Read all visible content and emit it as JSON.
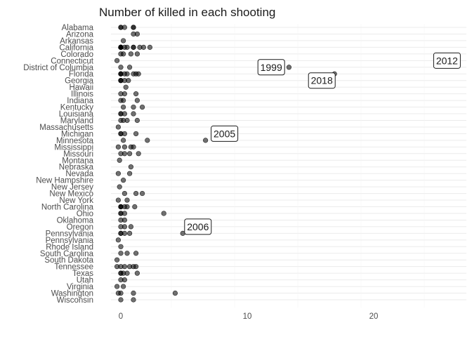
{
  "chart_data": {
    "type": "scatter",
    "title": "Number of killed in each shooting",
    "xlabel": "",
    "ylabel": "",
    "xlim": [
      -1,
      27
    ],
    "x_ticks": [
      0,
      10,
      20
    ],
    "grid": true,
    "categories": [
      "Alabama",
      "Arizona",
      "Arkansas",
      "California",
      "Colorado",
      "Connecticut",
      "District of Columbia",
      "Florida",
      "Georgia",
      "Hawaii",
      "Illinois",
      "Indiana",
      "Kentucky",
      "Louisiana",
      "Maryland",
      "Massachusetts",
      "Michigan",
      "Minnesota",
      "Mississippi",
      "Missouri",
      "Montana",
      "Nebraska",
      "Nevada",
      "New Hampshire",
      "New Jersey",
      "New Mexico",
      "New York",
      "North Carolina",
      "Ohio",
      "Oklahoma",
      "Oregon",
      "Pennsylvania",
      "Pennsylvania ",
      "Rhode Island",
      "South Carolina",
      "South Dakota",
      "Tennessee",
      "Texas",
      "Utah",
      "Virginia",
      "Washington",
      "Wisconsin"
    ],
    "points": [
      {
        "state": "Alabama",
        "x": [
          0,
          0,
          0.3,
          1,
          1
        ]
      },
      {
        "state": "Arizona",
        "x": [
          1,
          1.3
        ]
      },
      {
        "state": "Arkansas",
        "x": [
          0.2
        ]
      },
      {
        "state": "California",
        "x": [
          0,
          0,
          0,
          0,
          0,
          0,
          0,
          0,
          0.3,
          0.5,
          1,
          1,
          1.5,
          1.8,
          2.3
        ]
      },
      {
        "state": "Colorado",
        "x": [
          0,
          0.2,
          0.8,
          1.3
        ]
      },
      {
        "state": "Connecticut",
        "x": [
          -0.3
        ]
      },
      {
        "state": "District of Columbia",
        "x": [
          0,
          0.7,
          13.3
        ]
      },
      {
        "state": "Florida",
        "x": [
          0,
          0,
          0,
          0.3,
          0.5,
          1,
          1.2,
          1.4,
          16.9
        ]
      },
      {
        "state": "Georgia",
        "x": [
          0,
          0,
          0,
          0.3,
          0.6
        ]
      },
      {
        "state": "Hawaii",
        "x": [
          0.4
        ]
      },
      {
        "state": "Illinois",
        "x": [
          0,
          0.3,
          1.2
        ]
      },
      {
        "state": "Indiana",
        "x": [
          0,
          0.2,
          1.3
        ]
      },
      {
        "state": "Kentucky",
        "x": [
          0.2,
          1,
          1.7
        ]
      },
      {
        "state": "Louisiana",
        "x": [
          0,
          0,
          0.3,
          1
        ]
      },
      {
        "state": "Maryland",
        "x": [
          0,
          0.2,
          0.5,
          1.3
        ]
      },
      {
        "state": "Massachusetts",
        "x": [
          -0.2
        ]
      },
      {
        "state": "Michigan",
        "x": [
          0,
          0,
          0.3,
          1.2
        ]
      },
      {
        "state": "Minnesota",
        "x": [
          0.2,
          2.1,
          6.7
        ]
      },
      {
        "state": "Mississippi",
        "x": [
          -0.2,
          0.3,
          0.8,
          1
        ]
      },
      {
        "state": "Missouri",
        "x": [
          0,
          0.3,
          0.7,
          1.4
        ]
      },
      {
        "state": "Montana",
        "x": [
          -0.1
        ]
      },
      {
        "state": "Nebraska",
        "x": [
          0.8
        ]
      },
      {
        "state": "Nevada",
        "x": [
          -0.2,
          0.7
        ]
      },
      {
        "state": "New Hampshire",
        "x": [
          0.2
        ]
      },
      {
        "state": "New Jersey",
        "x": [
          -0.1
        ]
      },
      {
        "state": "New Mexico",
        "x": [
          0.3,
          1.2,
          1.7
        ]
      },
      {
        "state": "New York",
        "x": [
          -0.2,
          0.5
        ]
      },
      {
        "state": "North Carolina",
        "x": [
          0,
          0,
          0,
          0.3,
          0.5,
          1.1
        ]
      },
      {
        "state": "Ohio",
        "x": [
          0,
          0,
          0.3,
          3.4
        ]
      },
      {
        "state": "Oklahoma",
        "x": [
          0,
          0.3
        ]
      },
      {
        "state": "Oregon",
        "x": [
          0,
          0.3,
          0.8
        ]
      },
      {
        "state": "Pennsylvania",
        "x": [
          0,
          0,
          0.3,
          0.7,
          4.9
        ]
      },
      {
        "state": "Pennsylvania ",
        "x": [
          -0.2
        ]
      },
      {
        "state": "Rhode Island",
        "x": [
          0
        ]
      },
      {
        "state": "South Carolina",
        "x": [
          0,
          0.5,
          1.2
        ]
      },
      {
        "state": "South Dakota",
        "x": [
          -0.3
        ]
      },
      {
        "state": "Tennessee",
        "x": [
          -0.3,
          0,
          0.3,
          0.7,
          1,
          1.2
        ]
      },
      {
        "state": "Texas",
        "x": [
          0,
          0,
          0.2,
          0.5,
          1.3
        ]
      },
      {
        "state": "Utah",
        "x": [
          0,
          0.3
        ]
      },
      {
        "state": "Virginia",
        "x": [
          -0.3,
          0.2
        ]
      },
      {
        "state": "Washington",
        "x": [
          -0.2,
          0,
          1,
          4.3
        ]
      },
      {
        "state": "Wisconsin",
        "x": [
          0,
          1
        ]
      }
    ],
    "annotations": [
      {
        "label": "1999",
        "x": 11.9,
        "state": "District of Columbia"
      },
      {
        "label": "2012",
        "x": 25.8,
        "state": "Connecticut"
      },
      {
        "label": "2018",
        "x": 15.9,
        "state": "Georgia"
      },
      {
        "label": "2005",
        "x": 8.2,
        "state": "Michigan"
      },
      {
        "label": "2006",
        "x": 6.1,
        "state": "Oregon"
      }
    ]
  }
}
